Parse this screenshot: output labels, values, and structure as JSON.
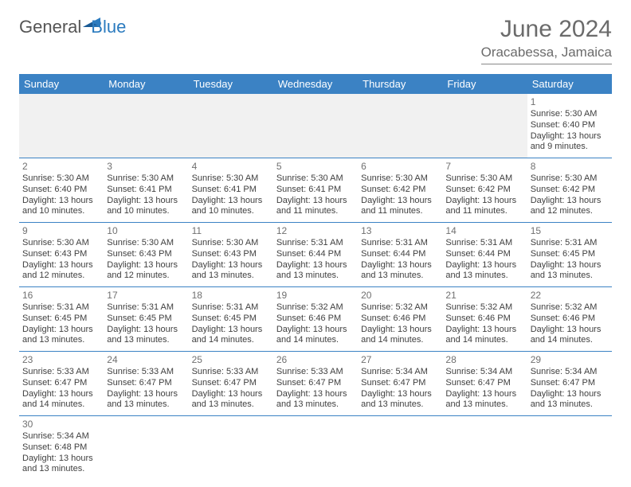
{
  "brand": {
    "part1": "General",
    "part2": "Blue"
  },
  "title": {
    "month": "June 2024",
    "location": "Oracabessa, Jamaica"
  },
  "colors": {
    "header_bg": "#3b82c4",
    "header_fg": "#ffffff",
    "border": "#3b82c4",
    "empty_bg": "#f1f1f1",
    "text": "#404040",
    "daynum": "#707070",
    "title_color": "#6b6b6b"
  },
  "columns": [
    "Sunday",
    "Monday",
    "Tuesday",
    "Wednesday",
    "Thursday",
    "Friday",
    "Saturday"
  ],
  "weeks": [
    [
      null,
      null,
      null,
      null,
      null,
      null,
      {
        "n": "1",
        "sr": "Sunrise: 5:30 AM",
        "ss": "Sunset: 6:40 PM",
        "dl": "Daylight: 13 hours and 9 minutes."
      }
    ],
    [
      {
        "n": "2",
        "sr": "Sunrise: 5:30 AM",
        "ss": "Sunset: 6:40 PM",
        "dl": "Daylight: 13 hours and 10 minutes."
      },
      {
        "n": "3",
        "sr": "Sunrise: 5:30 AM",
        "ss": "Sunset: 6:41 PM",
        "dl": "Daylight: 13 hours and 10 minutes."
      },
      {
        "n": "4",
        "sr": "Sunrise: 5:30 AM",
        "ss": "Sunset: 6:41 PM",
        "dl": "Daylight: 13 hours and 10 minutes."
      },
      {
        "n": "5",
        "sr": "Sunrise: 5:30 AM",
        "ss": "Sunset: 6:41 PM",
        "dl": "Daylight: 13 hours and 11 minutes."
      },
      {
        "n": "6",
        "sr": "Sunrise: 5:30 AM",
        "ss": "Sunset: 6:42 PM",
        "dl": "Daylight: 13 hours and 11 minutes."
      },
      {
        "n": "7",
        "sr": "Sunrise: 5:30 AM",
        "ss": "Sunset: 6:42 PM",
        "dl": "Daylight: 13 hours and 11 minutes."
      },
      {
        "n": "8",
        "sr": "Sunrise: 5:30 AM",
        "ss": "Sunset: 6:42 PM",
        "dl": "Daylight: 13 hours and 12 minutes."
      }
    ],
    [
      {
        "n": "9",
        "sr": "Sunrise: 5:30 AM",
        "ss": "Sunset: 6:43 PM",
        "dl": "Daylight: 13 hours and 12 minutes."
      },
      {
        "n": "10",
        "sr": "Sunrise: 5:30 AM",
        "ss": "Sunset: 6:43 PM",
        "dl": "Daylight: 13 hours and 12 minutes."
      },
      {
        "n": "11",
        "sr": "Sunrise: 5:30 AM",
        "ss": "Sunset: 6:43 PM",
        "dl": "Daylight: 13 hours and 13 minutes."
      },
      {
        "n": "12",
        "sr": "Sunrise: 5:31 AM",
        "ss": "Sunset: 6:44 PM",
        "dl": "Daylight: 13 hours and 13 minutes."
      },
      {
        "n": "13",
        "sr": "Sunrise: 5:31 AM",
        "ss": "Sunset: 6:44 PM",
        "dl": "Daylight: 13 hours and 13 minutes."
      },
      {
        "n": "14",
        "sr": "Sunrise: 5:31 AM",
        "ss": "Sunset: 6:44 PM",
        "dl": "Daylight: 13 hours and 13 minutes."
      },
      {
        "n": "15",
        "sr": "Sunrise: 5:31 AM",
        "ss": "Sunset: 6:45 PM",
        "dl": "Daylight: 13 hours and 13 minutes."
      }
    ],
    [
      {
        "n": "16",
        "sr": "Sunrise: 5:31 AM",
        "ss": "Sunset: 6:45 PM",
        "dl": "Daylight: 13 hours and 13 minutes."
      },
      {
        "n": "17",
        "sr": "Sunrise: 5:31 AM",
        "ss": "Sunset: 6:45 PM",
        "dl": "Daylight: 13 hours and 13 minutes."
      },
      {
        "n": "18",
        "sr": "Sunrise: 5:31 AM",
        "ss": "Sunset: 6:45 PM",
        "dl": "Daylight: 13 hours and 14 minutes."
      },
      {
        "n": "19",
        "sr": "Sunrise: 5:32 AM",
        "ss": "Sunset: 6:46 PM",
        "dl": "Daylight: 13 hours and 14 minutes."
      },
      {
        "n": "20",
        "sr": "Sunrise: 5:32 AM",
        "ss": "Sunset: 6:46 PM",
        "dl": "Daylight: 13 hours and 14 minutes."
      },
      {
        "n": "21",
        "sr": "Sunrise: 5:32 AM",
        "ss": "Sunset: 6:46 PM",
        "dl": "Daylight: 13 hours and 14 minutes."
      },
      {
        "n": "22",
        "sr": "Sunrise: 5:32 AM",
        "ss": "Sunset: 6:46 PM",
        "dl": "Daylight: 13 hours and 14 minutes."
      }
    ],
    [
      {
        "n": "23",
        "sr": "Sunrise: 5:33 AM",
        "ss": "Sunset: 6:47 PM",
        "dl": "Daylight: 13 hours and 14 minutes."
      },
      {
        "n": "24",
        "sr": "Sunrise: 5:33 AM",
        "ss": "Sunset: 6:47 PM",
        "dl": "Daylight: 13 hours and 13 minutes."
      },
      {
        "n": "25",
        "sr": "Sunrise: 5:33 AM",
        "ss": "Sunset: 6:47 PM",
        "dl": "Daylight: 13 hours and 13 minutes."
      },
      {
        "n": "26",
        "sr": "Sunrise: 5:33 AM",
        "ss": "Sunset: 6:47 PM",
        "dl": "Daylight: 13 hours and 13 minutes."
      },
      {
        "n": "27",
        "sr": "Sunrise: 5:34 AM",
        "ss": "Sunset: 6:47 PM",
        "dl": "Daylight: 13 hours and 13 minutes."
      },
      {
        "n": "28",
        "sr": "Sunrise: 5:34 AM",
        "ss": "Sunset: 6:47 PM",
        "dl": "Daylight: 13 hours and 13 minutes."
      },
      {
        "n": "29",
        "sr": "Sunrise: 5:34 AM",
        "ss": "Sunset: 6:47 PM",
        "dl": "Daylight: 13 hours and 13 minutes."
      }
    ],
    [
      {
        "n": "30",
        "sr": "Sunrise: 5:34 AM",
        "ss": "Sunset: 6:48 PM",
        "dl": "Daylight: 13 hours and 13 minutes."
      },
      null,
      null,
      null,
      null,
      null,
      null
    ]
  ]
}
